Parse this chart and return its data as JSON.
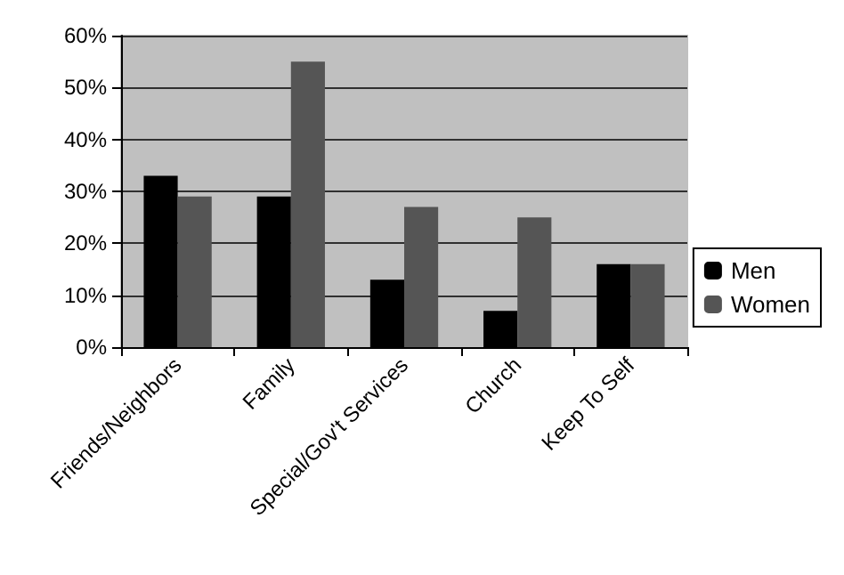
{
  "chart_data": {
    "type": "bar",
    "categories": [
      "Friends/Neighbors",
      "Family",
      "Special/Gov't Services",
      "Church",
      "Keep To Self"
    ],
    "series": [
      {
        "name": "Men",
        "color": "#000000",
        "values": [
          33,
          29,
          13,
          7,
          16
        ]
      },
      {
        "name": "Women",
        "color": "#555555",
        "values": [
          29,
          55,
          27,
          25,
          16
        ]
      }
    ],
    "ylim": [
      0,
      60
    ],
    "yticks": [
      {
        "value": 0,
        "label": "0%"
      },
      {
        "value": 10,
        "label": "10%"
      },
      {
        "value": 20,
        "label": "20%"
      },
      {
        "value": 30,
        "label": "30%"
      },
      {
        "value": 40,
        "label": "40%"
      },
      {
        "value": 50,
        "label": "50%"
      },
      {
        "value": 60,
        "label": "60%"
      }
    ],
    "grid": "y",
    "legend": "right"
  }
}
